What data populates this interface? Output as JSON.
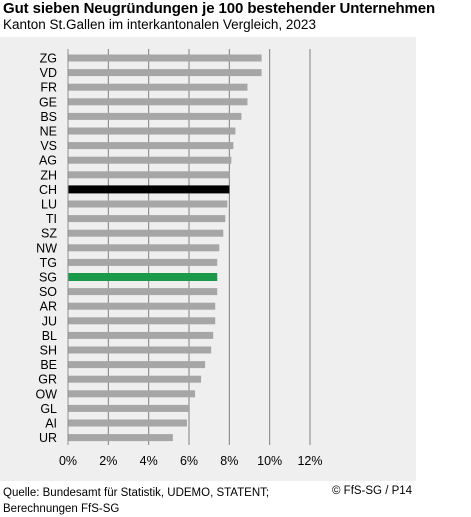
{
  "title": "Gut sieben Neugründungen je 100 bestehender Unternehmen",
  "subtitle": "Kanton St.Gallen im interkantonalen Vergleich, 2023",
  "source_line1": "Quelle: Bundesamt für Statistik, UDEMO, STATENT;",
  "source_line2": "Berechnungen FfS-SG",
  "copyright": "© FfS-SG / P14",
  "chart_data": {
    "type": "bar",
    "orientation": "horizontal",
    "title": "Gut sieben Neugründungen je 100 bestehender Unternehmen",
    "subtitle": "Kanton St.Gallen im interkantonalen Vergleich, 2023",
    "xlabel": "",
    "ylabel": "",
    "xlim": [
      0,
      12
    ],
    "x_ticks": [
      "0%",
      "2%",
      "4%",
      "6%",
      "8%",
      "10%",
      "12%"
    ],
    "grid": true,
    "legend": "none",
    "categories": [
      "ZG",
      "VD",
      "FR",
      "GE",
      "BS",
      "NE",
      "VS",
      "AG",
      "ZH",
      "CH",
      "LU",
      "TI",
      "SZ",
      "NW",
      "TG",
      "SG",
      "SO",
      "AR",
      "JU",
      "BL",
      "SH",
      "BE",
      "GR",
      "OW",
      "GL",
      "AI",
      "UR"
    ],
    "values": [
      9.6,
      9.6,
      8.9,
      8.9,
      8.6,
      8.3,
      8.2,
      8.1,
      8.0,
      8.0,
      7.9,
      7.8,
      7.7,
      7.5,
      7.4,
      7.4,
      7.4,
      7.3,
      7.3,
      7.2,
      7.1,
      6.8,
      6.6,
      6.3,
      6.0,
      5.9,
      5.2
    ],
    "highlight": {
      "CH": "#000000",
      "SG": "#1a9a48"
    },
    "bar_color": "#a6a6a6",
    "gridline_color": "#7f7f7f"
  }
}
